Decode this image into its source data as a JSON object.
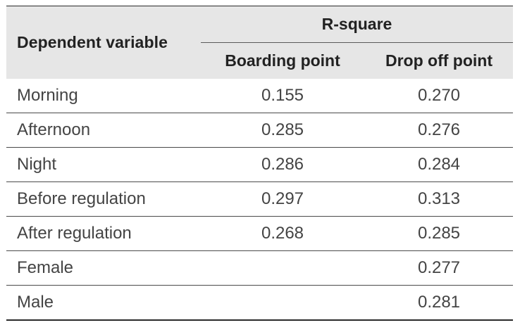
{
  "table": {
    "header": {
      "dependent_variable": "Dependent variable",
      "group": "R-square",
      "col_boarding": "Boarding point",
      "col_dropoff": "Drop off point"
    },
    "rows": [
      {
        "label": "Morning",
        "boarding": "0.155",
        "dropoff": "0.270"
      },
      {
        "label": "Afternoon",
        "boarding": "0.285",
        "dropoff": "0.276"
      },
      {
        "label": "Night",
        "boarding": "0.286",
        "dropoff": "0.284"
      },
      {
        "label": "Before regulation",
        "boarding": "0.297",
        "dropoff": "0.313"
      },
      {
        "label": "After regulation",
        "boarding": "0.268",
        "dropoff": "0.285"
      },
      {
        "label": "Female",
        "boarding": "",
        "dropoff": "0.277"
      },
      {
        "label": "Male",
        "boarding": "",
        "dropoff": "0.281"
      }
    ]
  }
}
